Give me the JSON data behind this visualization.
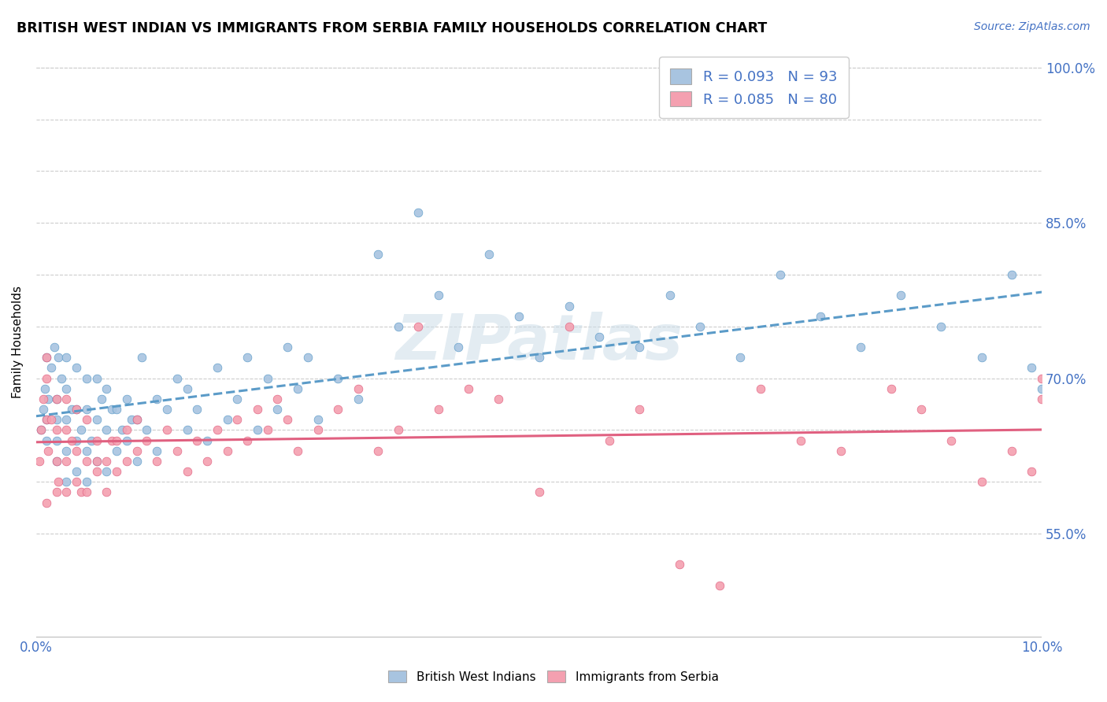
{
  "title": "BRITISH WEST INDIAN VS IMMIGRANTS FROM SERBIA FAMILY HOUSEHOLDS CORRELATION CHART",
  "source": "Source: ZipAtlas.com",
  "ylabel": "Family Households",
  "xlim": [
    0.0,
    0.1
  ],
  "ylim": [
    0.45,
    1.02
  ],
  "xticklabels": [
    "0.0%",
    "",
    "",
    "",
    "",
    "",
    "",
    "",
    "",
    "",
    "10.0%"
  ],
  "ytick_positions": [
    0.55,
    0.6,
    0.65,
    0.7,
    0.75,
    0.8,
    0.85,
    0.9,
    0.95,
    1.0
  ],
  "ytick_labels": [
    "55.0%",
    "",
    "",
    "70.0%",
    "",
    "",
    "85.0%",
    "",
    "",
    "100.0%"
  ],
  "R_blue": 0.093,
  "N_blue": 93,
  "R_pink": 0.085,
  "N_pink": 80,
  "color_blue": "#a8c4e0",
  "color_blue_dark": "#5b9bc8",
  "color_pink": "#f4a0b0",
  "color_pink_dark": "#e06080",
  "color_line_blue": "#5b9bc8",
  "color_line_pink": "#e06080",
  "watermark": "ZIPatlas",
  "legend_label_blue": "British West Indians",
  "legend_label_pink": "Immigrants from Serbia",
  "blue_x": [
    0.0005,
    0.0007,
    0.0009,
    0.001,
    0.001,
    0.001,
    0.0012,
    0.0015,
    0.0018,
    0.002,
    0.002,
    0.002,
    0.002,
    0.0022,
    0.0025,
    0.003,
    0.003,
    0.003,
    0.003,
    0.003,
    0.0035,
    0.004,
    0.004,
    0.004,
    0.004,
    0.0045,
    0.005,
    0.005,
    0.005,
    0.005,
    0.0055,
    0.006,
    0.006,
    0.006,
    0.0065,
    0.007,
    0.007,
    0.007,
    0.0075,
    0.008,
    0.008,
    0.0085,
    0.009,
    0.009,
    0.0095,
    0.01,
    0.01,
    0.0105,
    0.011,
    0.012,
    0.012,
    0.013,
    0.014,
    0.015,
    0.015,
    0.016,
    0.017,
    0.018,
    0.019,
    0.02,
    0.021,
    0.022,
    0.023,
    0.024,
    0.025,
    0.026,
    0.027,
    0.028,
    0.03,
    0.032,
    0.034,
    0.036,
    0.038,
    0.04,
    0.042,
    0.045,
    0.048,
    0.05,
    0.053,
    0.056,
    0.06,
    0.063,
    0.066,
    0.07,
    0.074,
    0.078,
    0.082,
    0.086,
    0.09,
    0.094,
    0.097,
    0.099,
    0.1
  ],
  "blue_y": [
    0.65,
    0.67,
    0.69,
    0.72,
    0.66,
    0.64,
    0.68,
    0.71,
    0.73,
    0.62,
    0.64,
    0.66,
    0.68,
    0.72,
    0.7,
    0.6,
    0.63,
    0.66,
    0.69,
    0.72,
    0.67,
    0.61,
    0.64,
    0.67,
    0.71,
    0.65,
    0.6,
    0.63,
    0.67,
    0.7,
    0.64,
    0.62,
    0.66,
    0.7,
    0.68,
    0.61,
    0.65,
    0.69,
    0.67,
    0.63,
    0.67,
    0.65,
    0.64,
    0.68,
    0.66,
    0.62,
    0.66,
    0.72,
    0.65,
    0.63,
    0.68,
    0.67,
    0.7,
    0.65,
    0.69,
    0.67,
    0.64,
    0.71,
    0.66,
    0.68,
    0.72,
    0.65,
    0.7,
    0.67,
    0.73,
    0.69,
    0.72,
    0.66,
    0.7,
    0.68,
    0.82,
    0.75,
    0.86,
    0.78,
    0.73,
    0.82,
    0.76,
    0.72,
    0.77,
    0.74,
    0.73,
    0.78,
    0.75,
    0.72,
    0.8,
    0.76,
    0.73,
    0.78,
    0.75,
    0.72,
    0.8,
    0.71,
    0.69
  ],
  "pink_x": [
    0.0003,
    0.0005,
    0.0007,
    0.001,
    0.001,
    0.001,
    0.001,
    0.0012,
    0.0015,
    0.002,
    0.002,
    0.002,
    0.002,
    0.0022,
    0.003,
    0.003,
    0.003,
    0.003,
    0.0035,
    0.004,
    0.004,
    0.004,
    0.0045,
    0.005,
    0.005,
    0.005,
    0.006,
    0.006,
    0.006,
    0.007,
    0.007,
    0.0075,
    0.008,
    0.008,
    0.009,
    0.009,
    0.01,
    0.01,
    0.011,
    0.012,
    0.013,
    0.014,
    0.015,
    0.016,
    0.017,
    0.018,
    0.019,
    0.02,
    0.021,
    0.022,
    0.023,
    0.024,
    0.025,
    0.026,
    0.028,
    0.03,
    0.032,
    0.034,
    0.036,
    0.038,
    0.04,
    0.043,
    0.046,
    0.05,
    0.053,
    0.057,
    0.06,
    0.064,
    0.068,
    0.072,
    0.076,
    0.08,
    0.085,
    0.088,
    0.091,
    0.094,
    0.097,
    0.099,
    0.1,
    0.1
  ],
  "pink_y": [
    0.62,
    0.65,
    0.68,
    0.7,
    0.66,
    0.72,
    0.58,
    0.63,
    0.66,
    0.59,
    0.62,
    0.65,
    0.68,
    0.6,
    0.59,
    0.62,
    0.65,
    0.68,
    0.64,
    0.6,
    0.63,
    0.67,
    0.59,
    0.62,
    0.66,
    0.59,
    0.61,
    0.64,
    0.62,
    0.59,
    0.62,
    0.64,
    0.61,
    0.64,
    0.62,
    0.65,
    0.63,
    0.66,
    0.64,
    0.62,
    0.65,
    0.63,
    0.61,
    0.64,
    0.62,
    0.65,
    0.63,
    0.66,
    0.64,
    0.67,
    0.65,
    0.68,
    0.66,
    0.63,
    0.65,
    0.67,
    0.69,
    0.63,
    0.65,
    0.75,
    0.67,
    0.69,
    0.68,
    0.59,
    0.75,
    0.64,
    0.67,
    0.52,
    0.5,
    0.69,
    0.64,
    0.63,
    0.69,
    0.67,
    0.64,
    0.6,
    0.63,
    0.61,
    0.7,
    0.68
  ]
}
